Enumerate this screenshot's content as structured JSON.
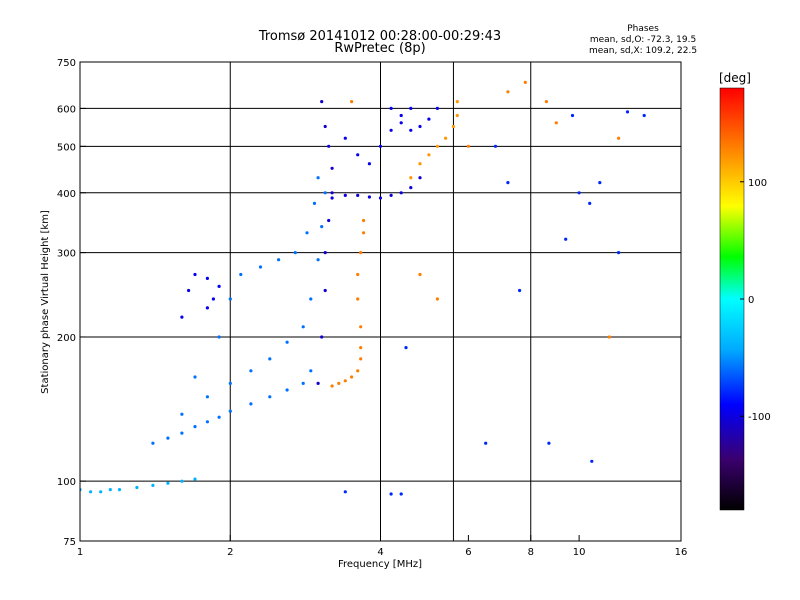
{
  "chart_data": {
    "type": "scatter",
    "title": "Tromsø 20141012 00:28:00-00:29:43",
    "subtitle": "RwPretec (8p)",
    "xlabel": "Frequency [MHz]",
    "ylabel": "Stationary phase Virtual Height [km]",
    "x_scale": "log",
    "y_scale": "log",
    "xlim": [
      1,
      16
    ],
    "ylim": [
      75,
      750
    ],
    "x_ticks": [
      1,
      2,
      4,
      6,
      8,
      10,
      16
    ],
    "x_tick_labels": [
      "1",
      "2",
      "4",
      "6",
      "8",
      "10",
      "16"
    ],
    "y_ticks": [
      75,
      100,
      200,
      300,
      400,
      500,
      600,
      750
    ],
    "y_tick_labels": [
      "75",
      "100",
      "200",
      "300",
      "400",
      "500",
      "600",
      "750"
    ],
    "x_gridlines": [
      2,
      4,
      5.6,
      8
    ],
    "grid": true,
    "phases_info": {
      "title": "Phases",
      "line1": "mean, sd,O: -72.3, 19.5",
      "line2": "mean, sd,X: 109.2, 22.5"
    },
    "colorbar": {
      "label": "[deg]",
      "range": [
        -180,
        180
      ],
      "ticks": [
        100,
        0,
        -100
      ],
      "tick_labels": [
        "100",
        "0",
        "-100"
      ]
    },
    "traces": [
      {
        "description": "low E trace",
        "phase": -40,
        "points": [
          [
            1.0,
            96
          ],
          [
            1.05,
            95
          ],
          [
            1.1,
            95
          ],
          [
            1.15,
            96
          ],
          [
            1.2,
            96
          ],
          [
            1.3,
            97
          ],
          [
            1.4,
            98
          ],
          [
            1.5,
            99
          ],
          [
            1.6,
            100
          ],
          [
            1.7,
            101
          ]
        ]
      },
      {
        "description": "O F-trace lower",
        "phase": -60,
        "points": [
          [
            1.4,
            120
          ],
          [
            1.5,
            123
          ],
          [
            1.6,
            126
          ],
          [
            1.7,
            130
          ],
          [
            1.8,
            133
          ],
          [
            1.9,
            136
          ],
          [
            2.0,
            140
          ],
          [
            2.2,
            145
          ],
          [
            2.4,
            150
          ],
          [
            2.6,
            155
          ],
          [
            2.8,
            160
          ],
          [
            2.9,
            170
          ]
        ]
      },
      {
        "description": "O F-trace middle",
        "phase": -60,
        "points": [
          [
            1.6,
            138
          ],
          [
            1.8,
            150
          ],
          [
            2.0,
            160
          ],
          [
            2.2,
            170
          ],
          [
            2.4,
            180
          ],
          [
            2.6,
            195
          ],
          [
            2.8,
            210
          ],
          [
            2.9,
            240
          ],
          [
            3.0,
            290
          ],
          [
            3.05,
            340
          ],
          [
            3.1,
            400
          ]
        ]
      },
      {
        "description": "O F-trace upper",
        "phase": -60,
        "points": [
          [
            1.7,
            165
          ],
          [
            1.9,
            200
          ],
          [
            2.0,
            240
          ],
          [
            2.1,
            270
          ],
          [
            2.3,
            280
          ],
          [
            2.5,
            290
          ],
          [
            2.7,
            300
          ],
          [
            2.85,
            330
          ],
          [
            2.95,
            380
          ],
          [
            3.0,
            430
          ]
        ]
      },
      {
        "description": "blue cusp trace",
        "phase": -95,
        "points": [
          [
            1.6,
            220
          ],
          [
            1.65,
            250
          ],
          [
            1.7,
            270
          ],
          [
            1.8,
            265
          ],
          [
            1.9,
            255
          ],
          [
            1.85,
            240
          ],
          [
            1.8,
            230
          ]
        ]
      },
      {
        "description": "dark blue vertical cluster",
        "phase": -105,
        "points": [
          [
            3.0,
            160
          ],
          [
            3.05,
            200
          ],
          [
            3.1,
            250
          ],
          [
            3.1,
            300
          ],
          [
            3.15,
            350
          ],
          [
            3.2,
            400
          ],
          [
            3.2,
            450
          ],
          [
            3.15,
            500
          ],
          [
            3.1,
            550
          ],
          [
            3.05,
            620
          ]
        ]
      },
      {
        "description": "blue plateau near 400 km",
        "phase": -100,
        "points": [
          [
            3.2,
            390
          ],
          [
            3.4,
            395
          ],
          [
            3.6,
            395
          ],
          [
            3.8,
            392
          ],
          [
            4.0,
            390
          ],
          [
            4.2,
            395
          ],
          [
            4.4,
            400
          ],
          [
            4.6,
            410
          ],
          [
            4.8,
            430
          ]
        ]
      },
      {
        "description": "blue upper trace",
        "phase": -95,
        "points": [
          [
            3.4,
            520
          ],
          [
            3.6,
            480
          ],
          [
            3.8,
            460
          ],
          [
            4.0,
            500
          ],
          [
            4.2,
            540
          ],
          [
            4.4,
            580
          ],
          [
            4.6,
            600
          ]
        ]
      },
      {
        "description": "orange X-trace lower",
        "phase": 130,
        "points": [
          [
            3.2,
            158
          ],
          [
            3.3,
            160
          ],
          [
            3.4,
            162
          ],
          [
            3.5,
            165
          ],
          [
            3.6,
            170
          ],
          [
            3.65,
            180
          ]
        ]
      },
      {
        "description": "orange X-trace vertical",
        "phase": 130,
        "points": [
          [
            3.65,
            190
          ],
          [
            3.65,
            210
          ],
          [
            3.6,
            240
          ],
          [
            3.6,
            270
          ],
          [
            3.65,
            300
          ],
          [
            3.7,
            330
          ],
          [
            3.7,
            350
          ]
        ]
      },
      {
        "description": "orange upper traces",
        "phase": 120,
        "points": [
          [
            4.6,
            430
          ],
          [
            4.8,
            460
          ],
          [
            5.0,
            480
          ],
          [
            5.2,
            500
          ],
          [
            5.4,
            520
          ],
          [
            5.6,
            550
          ],
          [
            5.7,
            580
          ],
          [
            5.7,
            620
          ]
        ]
      },
      {
        "description": "blue upper right trace",
        "phase": -95,
        "points": [
          [
            4.2,
            600
          ],
          [
            4.4,
            560
          ],
          [
            4.6,
            540
          ],
          [
            4.8,
            550
          ],
          [
            5.0,
            570
          ],
          [
            5.2,
            600
          ]
        ]
      },
      {
        "description": "scattered points",
        "phase": -80,
        "points": [
          [
            3.4,
            95
          ],
          [
            4.2,
            94
          ],
          [
            4.4,
            94
          ],
          [
            4.5,
            190
          ],
          [
            6.5,
            120
          ],
          [
            6.8,
            500
          ],
          [
            7.2,
            420
          ],
          [
            7.6,
            250
          ],
          [
            8.7,
            120
          ],
          [
            9.4,
            320
          ],
          [
            9.7,
            580
          ],
          [
            10.0,
            400
          ],
          [
            10.5,
            380
          ],
          [
            10.6,
            110
          ],
          [
            11.0,
            420
          ],
          [
            12.0,
            300
          ],
          [
            12.5,
            590
          ],
          [
            13.5,
            580
          ]
        ]
      },
      {
        "description": "scattered warm points",
        "phase": 130,
        "points": [
          [
            3.5,
            620
          ],
          [
            4.8,
            270
          ],
          [
            5.2,
            240
          ],
          [
            6.0,
            500
          ],
          [
            7.2,
            650
          ],
          [
            7.8,
            680
          ],
          [
            8.6,
            620
          ],
          [
            9.0,
            560
          ],
          [
            11.5,
            200
          ],
          [
            12.0,
            520
          ]
        ]
      }
    ]
  }
}
